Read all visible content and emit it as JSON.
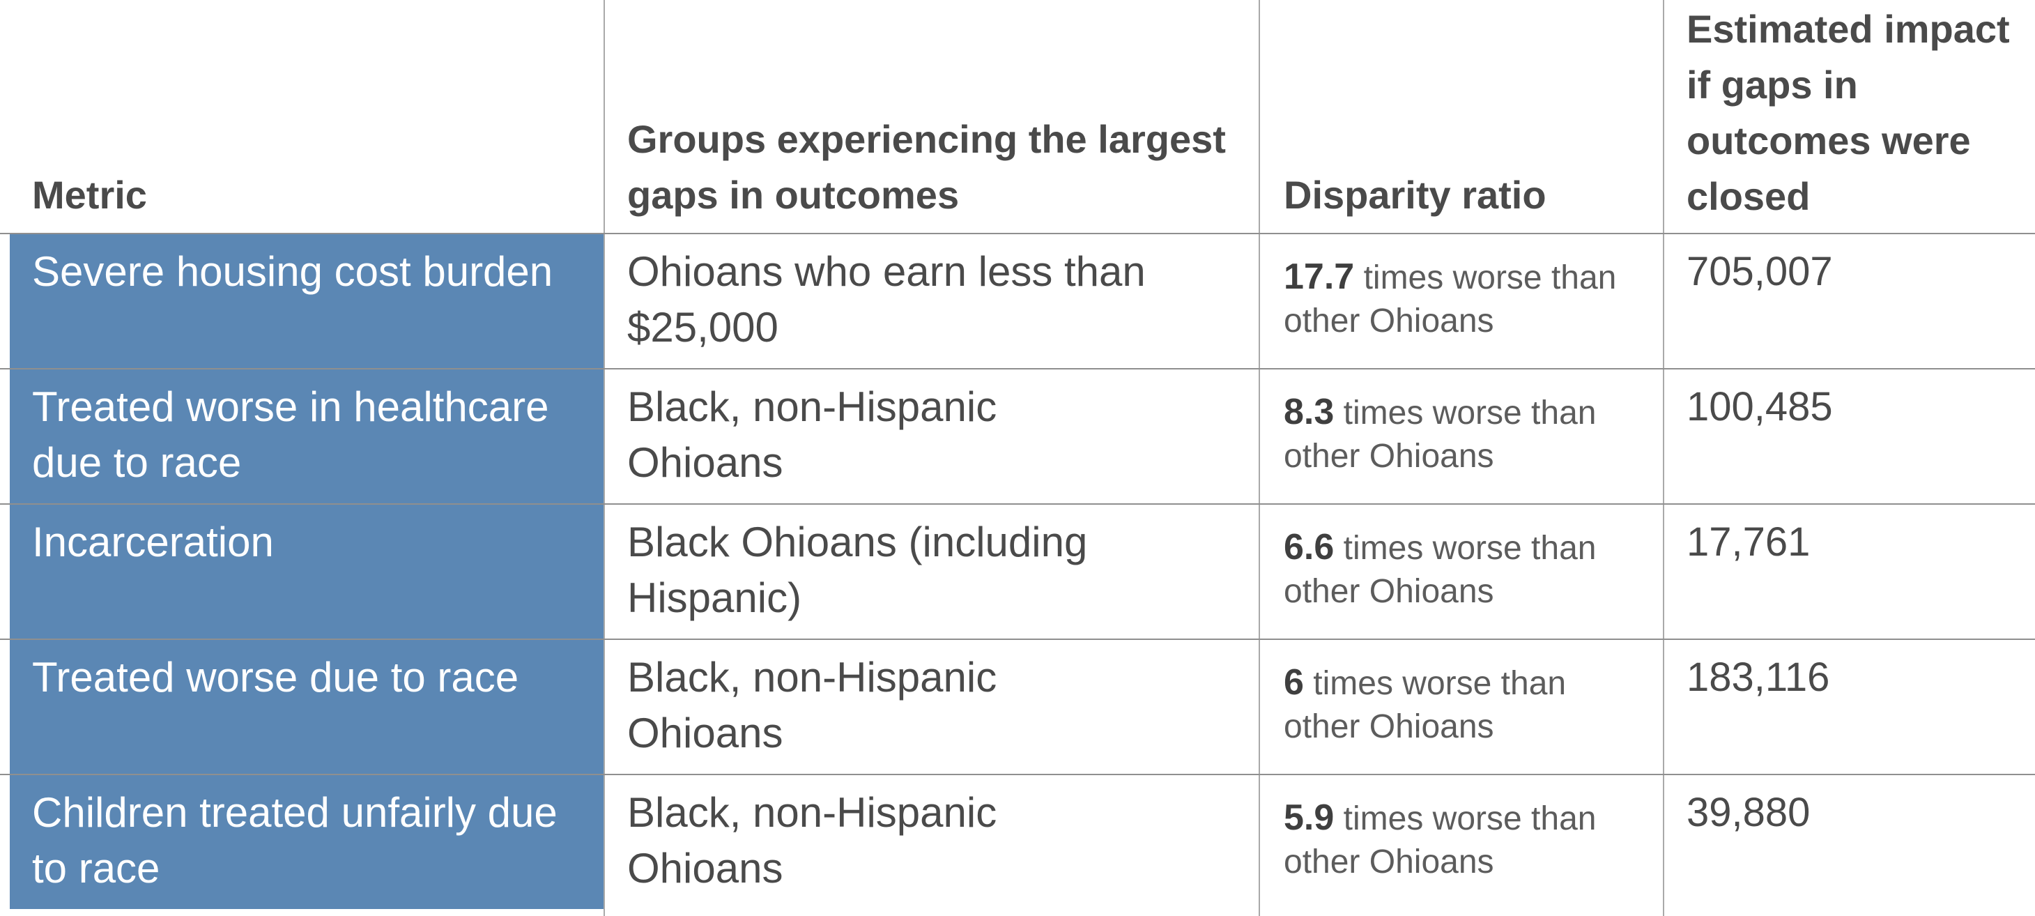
{
  "headers": {
    "metric": "Metric",
    "groups": "Groups experiencing the largest gaps in outcomes",
    "ratio": "Disparity ratio",
    "impact": "Estimated impact if gaps in outcomes were closed"
  },
  "rows": [
    {
      "metric": "Severe housing cost burden",
      "groups": "Ohioans who earn less than $25,000",
      "ratio_value": "17.7",
      "ratio_text": "times worse than other Ohioans",
      "impact": "705,007"
    },
    {
      "metric": "Treated worse in healthcare due to race",
      "groups": "Black, non-Hispanic Ohioans",
      "ratio_value": "8.3",
      "ratio_text": "times worse than other Ohioans",
      "impact": "100,485"
    },
    {
      "metric": "Incarceration",
      "groups": "Black Ohioans (including Hispanic)",
      "ratio_value": "6.6",
      "ratio_text": "times worse than other Ohioans",
      "impact": "17,761"
    },
    {
      "metric": "Treated worse due to race",
      "groups": "Black, non-Hispanic Ohioans",
      "ratio_value": "6",
      "ratio_text": "times worse than other Ohioans",
      "impact": "183,116"
    },
    {
      "metric": "Children treated unfairly due to race",
      "groups": "Black, non-Hispanic Ohioans",
      "ratio_value": "5.9",
      "ratio_text": "times worse than other Ohioans",
      "impact": "39,880"
    }
  ],
  "colors": {
    "metric_fill": "#5b87b4",
    "text": "#4a4a4a",
    "grid": "#a9a9a9"
  }
}
